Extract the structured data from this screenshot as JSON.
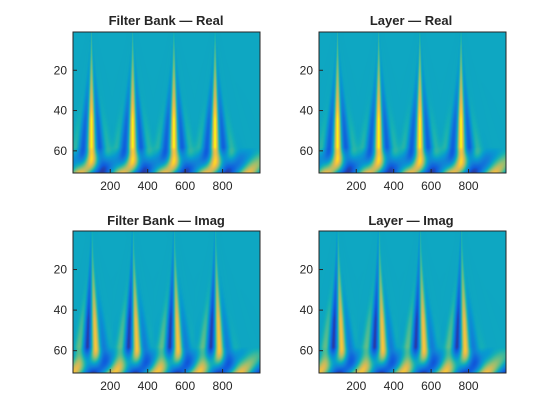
{
  "colors": {
    "colormap": "parula",
    "background": "#ffffff",
    "axis_line": "#262626",
    "text": "#262626"
  },
  "chart_data": [
    {
      "type": "heatmap",
      "panel_key": "filter_bank_real",
      "title": "Filter Bank — Real",
      "xlabel": "",
      "ylabel": "",
      "xlim": [
        1,
        1000
      ],
      "ylim": [
        1,
        71
      ],
      "y_direction": "reverse",
      "x_ticks": [
        200,
        400,
        600,
        800
      ],
      "x_tick_labels": [
        "200",
        "400",
        "600",
        "800"
      ],
      "y_ticks": [
        20,
        40,
        60
      ],
      "y_tick_labels": [
        "20",
        "40",
        "60"
      ],
      "value_range": [
        -1,
        1
      ],
      "peak_x_locations": [
        100,
        320,
        540,
        760
      ],
      "component": "real",
      "grid": false
    },
    {
      "type": "heatmap",
      "panel_key": "layer_real",
      "title": "Layer — Real",
      "xlabel": "",
      "ylabel": "",
      "xlim": [
        1,
        1000
      ],
      "ylim": [
        1,
        71
      ],
      "y_direction": "reverse",
      "x_ticks": [
        200,
        400,
        600,
        800
      ],
      "x_tick_labels": [
        "200",
        "400",
        "600",
        "800"
      ],
      "y_ticks": [
        20,
        40,
        60
      ],
      "y_tick_labels": [
        "20",
        "40",
        "60"
      ],
      "value_range": [
        -1,
        1
      ],
      "peak_x_locations": [
        100,
        320,
        540,
        760
      ],
      "component": "real",
      "grid": false
    },
    {
      "type": "heatmap",
      "panel_key": "filter_bank_imag",
      "title": "Filter Bank — Imag",
      "xlabel": "",
      "ylabel": "",
      "xlim": [
        1,
        1000
      ],
      "ylim": [
        1,
        71
      ],
      "y_direction": "reverse",
      "x_ticks": [
        200,
        400,
        600,
        800
      ],
      "x_tick_labels": [
        "200",
        "400",
        "600",
        "800"
      ],
      "y_ticks": [
        20,
        40,
        60
      ],
      "y_tick_labels": [
        "20",
        "40",
        "60"
      ],
      "value_range": [
        -1,
        1
      ],
      "peak_x_locations": [
        100,
        320,
        540,
        760
      ],
      "component": "imag",
      "grid": false
    },
    {
      "type": "heatmap",
      "panel_key": "layer_imag",
      "title": "Layer — Imag",
      "xlabel": "",
      "ylabel": "",
      "xlim": [
        1,
        1000
      ],
      "ylim": [
        1,
        71
      ],
      "y_direction": "reverse",
      "x_ticks": [
        200,
        400,
        600,
        800
      ],
      "x_tick_labels": [
        "200",
        "400",
        "600",
        "800"
      ],
      "y_ticks": [
        20,
        40,
        60
      ],
      "y_tick_labels": [
        "20",
        "40",
        "60"
      ],
      "value_range": [
        -1,
        1
      ],
      "peak_x_locations": [
        100,
        320,
        540,
        760
      ],
      "component": "imag",
      "grid": false
    }
  ]
}
